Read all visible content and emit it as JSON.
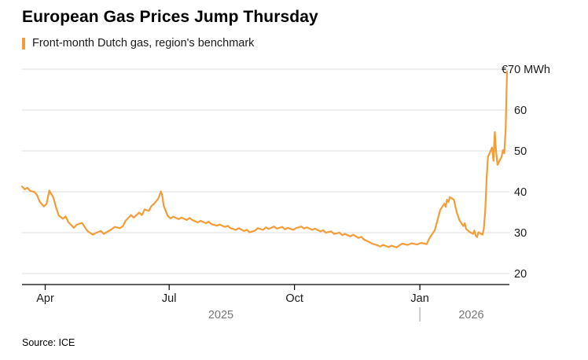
{
  "title": "European Gas Prices Jump Thursday",
  "legend": {
    "label": "Front-month Dutch gas, region's benchmark"
  },
  "source": "Source: ICE",
  "colors": {
    "line": "#f29d38",
    "grid": "#dcdcdc",
    "axis": "#000000",
    "year_text": "#767676",
    "separator": "#9b9b9b"
  },
  "chart_data": {
    "type": "line",
    "title": "European Gas Prices Jump Thursday",
    "subtitle": "Front-month Dutch gas, region's benchmark",
    "unit": "EUR/MWh",
    "ylim": [
      20,
      70
    ],
    "yticks": [
      20,
      30,
      40,
      50,
      60,
      70
    ],
    "ytick_top_label": "€70 MWh",
    "grid": true,
    "legend_position": "top-left",
    "xticks": [
      {
        "label": "Apr",
        "date": "2025-04-01"
      },
      {
        "label": "Jul",
        "date": "2025-07-01"
      },
      {
        "label": "Oct",
        "date": "2025-10-01"
      },
      {
        "label": "Jan",
        "date": "2026-01-01"
      }
    ],
    "year_labels": [
      {
        "label": "2025"
      },
      {
        "label": "2026"
      }
    ],
    "series": [
      {
        "name": "Front-month Dutch gas",
        "points": [
          [
            "2025-03-15",
            41.3
          ],
          [
            "2025-03-17",
            40.6
          ],
          [
            "2025-03-19",
            41.0
          ],
          [
            "2025-03-21",
            40.2
          ],
          [
            "2025-03-24",
            40.0
          ],
          [
            "2025-03-26",
            39.2
          ],
          [
            "2025-03-28",
            37.6
          ],
          [
            "2025-03-31",
            36.4
          ],
          [
            "2025-04-02",
            37.0
          ],
          [
            "2025-04-04",
            40.3
          ],
          [
            "2025-04-07",
            38.6
          ],
          [
            "2025-04-09",
            36.2
          ],
          [
            "2025-04-11",
            34.2
          ],
          [
            "2025-04-14",
            33.4
          ],
          [
            "2025-04-16",
            34.0
          ],
          [
            "2025-04-18",
            32.6
          ],
          [
            "2025-04-22",
            31.2
          ],
          [
            "2025-04-24",
            31.9
          ],
          [
            "2025-04-28",
            32.4
          ],
          [
            "2025-04-30",
            31.4
          ],
          [
            "2025-05-02",
            30.4
          ],
          [
            "2025-05-06",
            29.5
          ],
          [
            "2025-05-08",
            29.9
          ],
          [
            "2025-05-12",
            30.4
          ],
          [
            "2025-05-14",
            29.7
          ],
          [
            "2025-05-16",
            30.1
          ],
          [
            "2025-05-20",
            30.9
          ],
          [
            "2025-05-22",
            31.4
          ],
          [
            "2025-05-26",
            31.1
          ],
          [
            "2025-05-28",
            31.6
          ],
          [
            "2025-05-30",
            32.9
          ],
          [
            "2025-06-03",
            34.3
          ],
          [
            "2025-06-05",
            33.7
          ],
          [
            "2025-06-09",
            34.9
          ],
          [
            "2025-06-11",
            34.3
          ],
          [
            "2025-06-13",
            35.7
          ],
          [
            "2025-06-16",
            35.3
          ],
          [
            "2025-06-18",
            36.5
          ],
          [
            "2025-06-20",
            37.1
          ],
          [
            "2025-06-23",
            38.3
          ],
          [
            "2025-06-25",
            40.1
          ],
          [
            "2025-06-26",
            39.0
          ],
          [
            "2025-06-27",
            36.6
          ],
          [
            "2025-06-30",
            34.1
          ],
          [
            "2025-07-02",
            33.5
          ],
          [
            "2025-07-04",
            33.9
          ],
          [
            "2025-07-08",
            33.3
          ],
          [
            "2025-07-10",
            33.7
          ],
          [
            "2025-07-14",
            33.1
          ],
          [
            "2025-07-16",
            33.6
          ],
          [
            "2025-07-18",
            33.1
          ],
          [
            "2025-07-22",
            32.5
          ],
          [
            "2025-07-24",
            32.9
          ],
          [
            "2025-07-28",
            32.3
          ],
          [
            "2025-07-30",
            32.7
          ],
          [
            "2025-08-01",
            32.1
          ],
          [
            "2025-08-05",
            31.7
          ],
          [
            "2025-08-07",
            32.0
          ],
          [
            "2025-08-11",
            31.4
          ],
          [
            "2025-08-13",
            31.7
          ],
          [
            "2025-08-15",
            31.1
          ],
          [
            "2025-08-19",
            30.7
          ],
          [
            "2025-08-21",
            31.1
          ],
          [
            "2025-08-25",
            30.4
          ],
          [
            "2025-08-27",
            30.7
          ],
          [
            "2025-08-29",
            30.1
          ],
          [
            "2025-09-02",
            30.5
          ],
          [
            "2025-09-04",
            31.1
          ],
          [
            "2025-09-08",
            30.7
          ],
          [
            "2025-09-10",
            31.3
          ],
          [
            "2025-09-12",
            30.9
          ],
          [
            "2025-09-16",
            31.5
          ],
          [
            "2025-09-18",
            31.0
          ],
          [
            "2025-09-22",
            31.4
          ],
          [
            "2025-09-24",
            30.8
          ],
          [
            "2025-09-26",
            31.2
          ],
          [
            "2025-09-30",
            30.7
          ],
          [
            "2025-10-02",
            31.1
          ],
          [
            "2025-10-06",
            31.5
          ],
          [
            "2025-10-08",
            31.0
          ],
          [
            "2025-10-10",
            31.3
          ],
          [
            "2025-10-14",
            30.7
          ],
          [
            "2025-10-16",
            31.0
          ],
          [
            "2025-10-20",
            30.3
          ],
          [
            "2025-10-22",
            30.6
          ],
          [
            "2025-10-24",
            30.0
          ],
          [
            "2025-10-28",
            30.3
          ],
          [
            "2025-10-30",
            29.7
          ],
          [
            "2025-11-03",
            30.0
          ],
          [
            "2025-11-05",
            29.4
          ],
          [
            "2025-11-07",
            29.7
          ],
          [
            "2025-11-11",
            29.1
          ],
          [
            "2025-11-13",
            29.5
          ],
          [
            "2025-11-17",
            28.7
          ],
          [
            "2025-11-19",
            29.0
          ],
          [
            "2025-11-21",
            28.3
          ],
          [
            "2025-11-25",
            27.7
          ],
          [
            "2025-11-27",
            27.3
          ],
          [
            "2025-12-01",
            26.9
          ],
          [
            "2025-12-03",
            26.6
          ],
          [
            "2025-12-05",
            27.0
          ],
          [
            "2025-12-09",
            26.5
          ],
          [
            "2025-12-11",
            26.8
          ],
          [
            "2025-12-15",
            26.4
          ],
          [
            "2025-12-17",
            26.9
          ],
          [
            "2025-12-19",
            27.3
          ],
          [
            "2025-12-23",
            27.0
          ],
          [
            "2025-12-26",
            27.4
          ],
          [
            "2025-12-30",
            27.1
          ],
          [
            "2026-01-02",
            27.5
          ],
          [
            "2026-01-06",
            27.2
          ],
          [
            "2026-01-08",
            28.6
          ],
          [
            "2026-01-12",
            30.6
          ],
          [
            "2026-01-14",
            33.1
          ],
          [
            "2026-01-16",
            35.6
          ],
          [
            "2026-01-19",
            37.1
          ],
          [
            "2026-01-20",
            36.3
          ],
          [
            "2026-01-21",
            38.1
          ],
          [
            "2026-01-22",
            37.5
          ],
          [
            "2026-01-23",
            38.7
          ],
          [
            "2026-01-26",
            38.1
          ],
          [
            "2026-01-27",
            36.6
          ],
          [
            "2026-01-28",
            35.1
          ],
          [
            "2026-01-30",
            33.1
          ],
          [
            "2026-02-02",
            31.6
          ],
          [
            "2026-02-03",
            32.3
          ],
          [
            "2026-02-04",
            30.9
          ],
          [
            "2026-02-06",
            30.3
          ],
          [
            "2026-02-09",
            29.7
          ],
          [
            "2026-02-10",
            30.5
          ],
          [
            "2026-02-11",
            29.3
          ],
          [
            "2026-02-12",
            28.9
          ],
          [
            "2026-02-13",
            30.1
          ],
          [
            "2026-02-16",
            29.5
          ],
          [
            "2026-02-17",
            31.0
          ],
          [
            "2026-02-18",
            35.5
          ],
          [
            "2026-02-19",
            43.0
          ],
          [
            "2026-02-20",
            48.5
          ],
          [
            "2026-02-23",
            50.8
          ],
          [
            "2026-02-24",
            47.6
          ],
          [
            "2026-02-25",
            54.6
          ],
          [
            "2026-02-26",
            49.8
          ],
          [
            "2026-02-27",
            46.6
          ],
          [
            "2026-03-02",
            48.6
          ],
          [
            "2026-03-03",
            50.2
          ],
          [
            "2026-03-04",
            49.4
          ],
          [
            "2026-03-05",
            55.5
          ],
          [
            "2026-03-06",
            69.5
          ]
        ]
      }
    ]
  }
}
